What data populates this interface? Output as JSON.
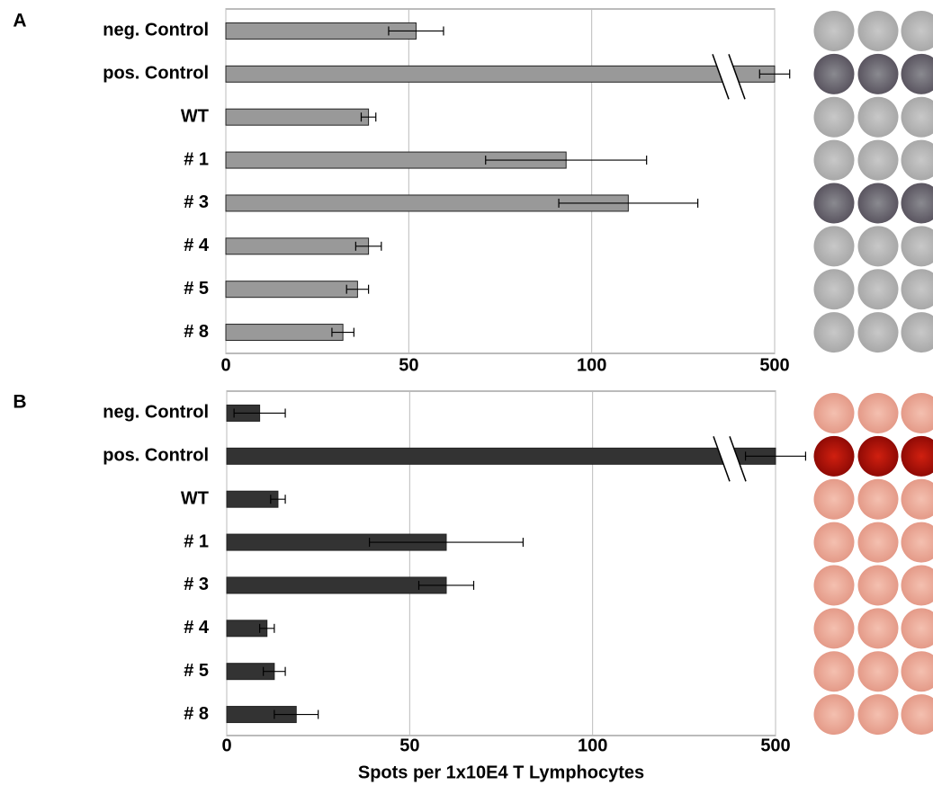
{
  "chart_data": [
    {
      "type": "bar",
      "panel_label": "A",
      "categories": [
        "neg. Control",
        "pos. Control",
        "WT",
        "# 1",
        "# 3",
        "# 4",
        "# 5",
        "# 8"
      ],
      "values": [
        52,
        500,
        39,
        93,
        110,
        39,
        36,
        32
      ],
      "errors": [
        7.5,
        100,
        2,
        22,
        19,
        3.5,
        3,
        3
      ],
      "color": "#999999",
      "xlim": [
        0,
        500
      ],
      "x_break": 135,
      "xticks": [
        0,
        50,
        100,
        500
      ],
      "grid": true
    },
    {
      "type": "bar",
      "panel_label": "B",
      "categories": [
        "neg. Control",
        "pos. Control",
        "WT",
        "# 1",
        "# 3",
        "# 4",
        "# 5",
        "# 8"
      ],
      "values": [
        9,
        500,
        14,
        60,
        60,
        11,
        13,
        19
      ],
      "errors": [
        7,
        200,
        2,
        21,
        7.5,
        2,
        3,
        6
      ],
      "color": "#333333",
      "xlim": [
        0,
        500
      ],
      "x_break": 135,
      "xticks": [
        0,
        50,
        100,
        500
      ],
      "grid": true,
      "xlabel": "Spots per 1x10E4 T Lymphocytes"
    }
  ]
}
